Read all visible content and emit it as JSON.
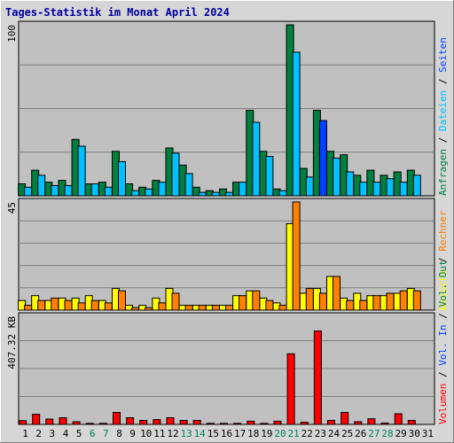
{
  "chart_data": {
    "type": "bar",
    "title": "Tages-Statistik im Monat April 2024",
    "categories": [
      "1",
      "2",
      "3",
      "4",
      "5",
      "6",
      "7",
      "8",
      "9",
      "10",
      "11",
      "12",
      "13",
      "14",
      "15",
      "16",
      "17",
      "18",
      "19",
      "20",
      "21",
      "22",
      "23",
      "24",
      "25",
      "26",
      "27",
      "28",
      "29",
      "30",
      "31"
    ],
    "weekend_days": [
      "6",
      "7",
      "13",
      "14",
      "20",
      "21",
      "27",
      "28"
    ],
    "panels": [
      {
        "name": "top",
        "ymax_label": "100",
        "ymax": 100,
        "right_legend": [
          {
            "label": "Anfragen",
            "color": "#007f3f"
          },
          {
            "label": "Dateien",
            "color": "#00c0ff"
          },
          {
            "label": "Seiten",
            "color": "#0040ff"
          }
        ],
        "legend_separators": [
          "/",
          "/"
        ],
        "series": [
          {
            "name": "Anfragen",
            "color": "#007f3f",
            "values": [
              7,
              15,
              8,
              9,
              33,
              7,
              8,
              26,
              7,
              5,
              9,
              28,
              18,
              5,
              3,
              4,
              8,
              50,
              26,
              4,
              100,
              16,
              50,
              26,
              24,
              12,
              15,
              12,
              14,
              15,
              0
            ]
          },
          {
            "name": "Dateien",
            "color": "#00c0ff",
            "values": [
              5,
              12,
              6,
              6,
              29,
              7,
              5,
              20,
              3,
              4,
              8,
              25,
              13,
              2,
              2,
              2,
              8,
              43,
              23,
              3,
              84,
              11,
              40,
              22,
              14,
              8,
              8,
              10,
              8,
              12,
              0
            ]
          },
          {
            "name": "Seiten",
            "color": "#0040ff",
            "values": [
              0,
              0,
              0,
              0,
              0,
              0,
              0,
              0,
              0,
              0,
              0,
              0,
              0,
              0,
              0,
              0,
              0,
              0,
              0,
              0,
              0,
              0,
              44,
              0,
              0,
              0,
              0,
              0,
              0,
              0,
              0
            ]
          }
        ]
      },
      {
        "name": "middle",
        "ymax_label": "45",
        "ymax": 45,
        "right_legend": [
          {
            "label": "Besuche",
            "color": "#ffff00"
          },
          {
            "label": "Rechner",
            "color": "#ff8000"
          }
        ],
        "legend_separators": [
          "/"
        ],
        "series": [
          {
            "name": "Besuche",
            "color": "#ffff00",
            "values": [
              4,
              6,
              4,
              5,
              5,
              6,
              4,
              9,
              2,
              2,
              5,
              9,
              2,
              2,
              2,
              2,
              6,
              8,
              5,
              3,
              36,
              7,
              9,
              14,
              5,
              7,
              6,
              6,
              7,
              9,
              0
            ]
          },
          {
            "name": "Rechner",
            "color": "#ff8000",
            "values": [
              2,
              4,
              5,
              4,
              3,
              4,
              3,
              8,
              1,
              1,
              3,
              7,
              2,
              2,
              2,
              2,
              6,
              8,
              4,
              2,
              45,
              9,
              7,
              14,
              4,
              4,
              6,
              7,
              8,
              8,
              0
            ]
          }
        ]
      },
      {
        "name": "bottom",
        "ymax_label": "407.32 KB",
        "ymax": 407.32,
        "right_legend": [
          {
            "label": "Volumen",
            "color": "#ff0000"
          },
          {
            "label": "Vol. In",
            "color": "#0040ff"
          },
          {
            "label": "Vol. Out",
            "color": "#007f3f"
          }
        ],
        "legend_separators": [
          "/",
          "/"
        ],
        "series": [
          {
            "name": "Volumen",
            "color": "#ff0000",
            "values": [
              14,
              38,
              20,
              25,
              10,
              4,
              4,
              45,
              25,
              15,
              18,
              25,
              15,
              15,
              4,
              4,
              4,
              12,
              4,
              12,
              266,
              8,
              352,
              15,
              45,
              10,
              21,
              5,
              40,
              15,
              0
            ]
          }
        ]
      }
    ]
  }
}
